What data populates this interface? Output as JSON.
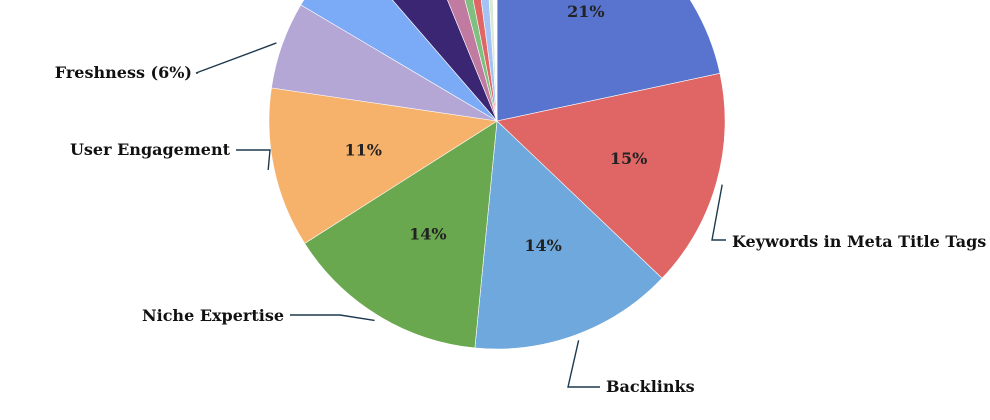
{
  "chart_data": {
    "type": "pie",
    "slices": [
      {
        "label": "",
        "value": 21,
        "pct_label": "21%",
        "color": "#5874cf"
      },
      {
        "label": "Keywords in Meta Title Tags",
        "value": 15,
        "pct_label": "15%",
        "color": "#e06666"
      },
      {
        "label": "Backlinks",
        "value": 14,
        "pct_label": "14%",
        "color": "#6fa8dc"
      },
      {
        "label": "Niche Expertise",
        "value": 14,
        "pct_label": "14%",
        "color": "#6aa84f"
      },
      {
        "label": "User Engagement",
        "value": 11,
        "pct_label": "11%",
        "color": "#f6b26b"
      },
      {
        "label": "Freshness (6%)",
        "value": 6,
        "pct_label": "",
        "color": "#b4a7d6"
      },
      {
        "label": "",
        "value": 5,
        "pct_label": "",
        "color": "#7baaf7"
      },
      {
        "label": "",
        "value": 5,
        "pct_label": "",
        "color": "#3a2673"
      },
      {
        "label": "",
        "value": 2,
        "pct_label": "",
        "color": "#c27ba0"
      },
      {
        "label": "",
        "value": 1,
        "pct_label": "",
        "color": "#7fbf7f"
      },
      {
        "label": "",
        "value": 1,
        "pct_label": "",
        "color": "#e06666"
      },
      {
        "label": "",
        "value": 1,
        "pct_label": "",
        "color": "#a4c2f4"
      },
      {
        "label": "",
        "value": 0.5,
        "pct_label": "",
        "color": "#d9ead3"
      },
      {
        "label": "",
        "value": 0.5,
        "pct_label": "",
        "color": "#ffffff"
      }
    ],
    "title": "",
    "legend": "none"
  }
}
